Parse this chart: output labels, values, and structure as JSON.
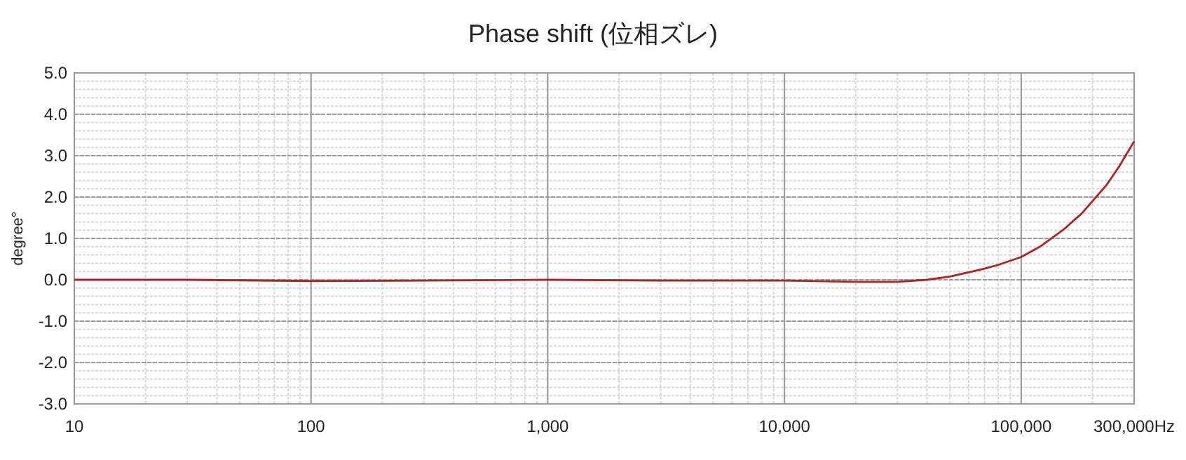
{
  "chart_data": {
    "type": "line",
    "title": "Phase shift (位相ズレ)",
    "ylabel": "degree°",
    "log": "x",
    "xlim": [
      10,
      300000
    ],
    "ylim": [
      -3,
      5
    ],
    "xticks": [
      10,
      100,
      {
        "value": 1000,
        "label": "1,000"
      },
      {
        "value": 10000,
        "label": "10,000"
      },
      {
        "value": 100000,
        "label": "100,000"
      },
      {
        "value": 300000,
        "label": "300,000Hz"
      }
    ],
    "yticks": [
      {
        "value": -3,
        "label": "-3.0"
      },
      {
        "value": -2,
        "label": "-2.0"
      },
      {
        "value": -1,
        "label": "-1.0"
      },
      {
        "value": 0,
        "label": "0.0"
      },
      {
        "value": 1,
        "label": "1.0"
      },
      {
        "value": 2,
        "label": "2.0"
      },
      {
        "value": 3,
        "label": "3.0"
      },
      {
        "value": 4,
        "label": "4.0"
      },
      {
        "value": 5,
        "label": "5.0"
      }
    ],
    "grid": true,
    "marker": "none",
    "line_style": "solid",
    "series": [
      {
        "color": "#b22222",
        "x": [
          10,
          30,
          100,
          300,
          1000,
          3000,
          10000,
          20000,
          30000,
          40000,
          50000,
          60000,
          70000,
          80000,
          100000,
          120000,
          150000,
          180000,
          200000,
          230000,
          260000,
          300000
        ],
        "values": [
          0,
          0,
          -0.03,
          -0.02,
          0,
          -0.02,
          -0.02,
          -0.05,
          -0.05,
          0,
          0.08,
          0.18,
          0.27,
          0.36,
          0.55,
          0.8,
          1.2,
          1.6,
          1.9,
          2.3,
          2.75,
          3.35
        ]
      }
    ]
  }
}
